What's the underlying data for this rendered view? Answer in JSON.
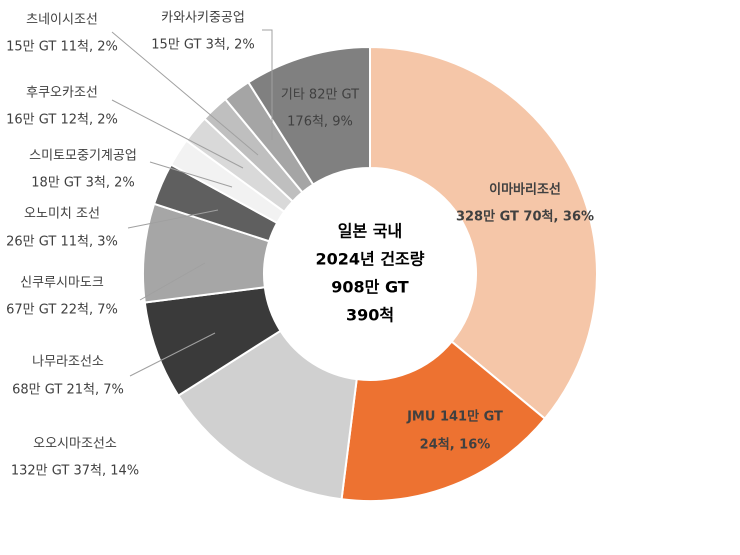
{
  "chart_data": {
    "type": "donut",
    "center_text": [
      "일본 국내",
      "2024년 건조량",
      "908만 GT",
      "390척"
    ],
    "categories": [
      "이마바리조선",
      "JMU 141만 GT",
      "오오시마조선소",
      "나무라조선소",
      "신쿠루시마도크",
      "오노미치 조선",
      "스미토모중기계공업",
      "후쿠오카조선",
      "츠네이시조선",
      "카와사키중공업",
      "기타 82만 GT"
    ],
    "values": [
      36,
      16,
      14,
      7,
      7,
      3,
      2,
      2,
      2,
      2,
      9
    ],
    "value_labels": [
      "328만 GT 70척, 36%",
      "24척, 16%",
      "132만 GT 37척, 14%",
      "68만 GT 21척, 7%",
      "67만 GT 22척, 7%",
      "26만 GT 11척, 3%",
      "18만 GT 3척, 2%",
      "16만 GT 12척, 2%",
      "15만 GT 11척, 2%",
      "15만 GT 3척, 2%",
      "176척, 9%"
    ],
    "colors": [
      "#f5c6a8",
      "#ed7231",
      "#d0d0d0",
      "#3a3a3a",
      "#a6a6a6",
      "#5f5f5f",
      "#f2f2f2",
      "#d9d9d9",
      "#bfbfbf",
      "#a5a5a5",
      "#808080"
    ]
  }
}
